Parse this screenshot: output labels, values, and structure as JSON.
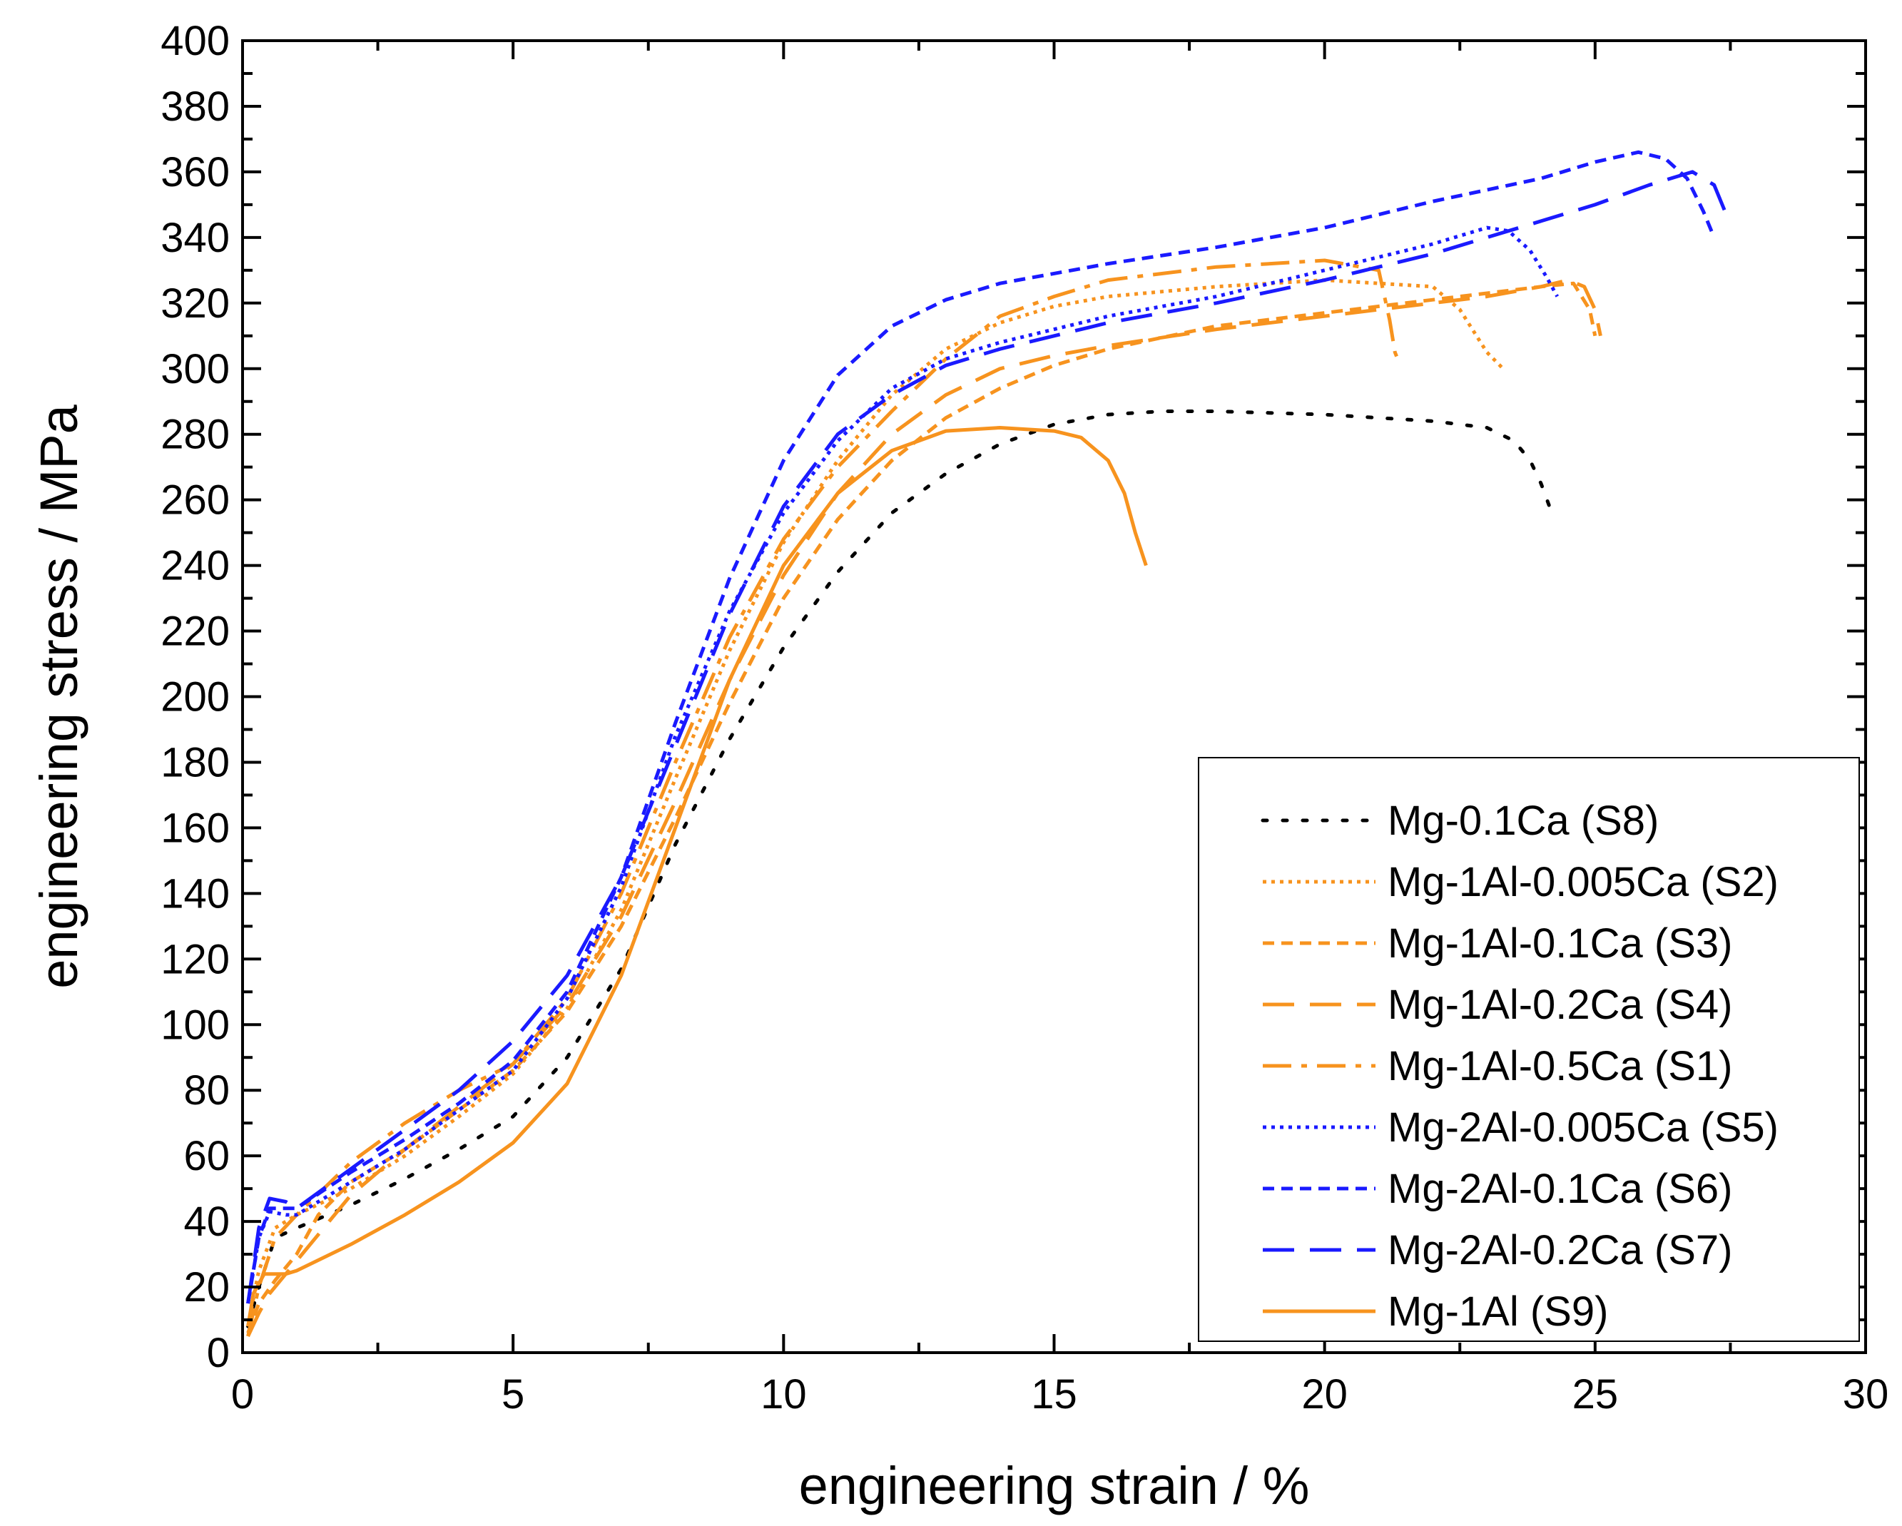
{
  "chart_data": {
    "type": "line",
    "title": "",
    "xlabel": "engineering strain / %",
    "ylabel": "engineering stress / MPa",
    "xlim": [
      0,
      30
    ],
    "ylim": [
      0,
      400
    ],
    "xticks": [
      0,
      5,
      10,
      15,
      20,
      25,
      30
    ],
    "yticks": [
      0,
      20,
      40,
      60,
      80,
      100,
      120,
      140,
      160,
      180,
      200,
      220,
      240,
      260,
      280,
      300,
      320,
      340,
      360,
      380,
      400
    ],
    "xtick_labels": [
      "0",
      "5",
      "10",
      "15",
      "20",
      "25",
      "30"
    ],
    "ytick_labels": [
      "0",
      "20",
      "40",
      "60",
      "80",
      "100",
      "120",
      "140",
      "160",
      "180",
      "200",
      "220",
      "240",
      "260",
      "280",
      "300",
      "320",
      "340",
      "360",
      "380",
      "400"
    ],
    "grid": false,
    "legend_position": "bottom-right",
    "series": [
      {
        "name": "Mg-0.1Ca (S8)",
        "color": "#000000",
        "dash": "dot-sparse",
        "x": [
          0.1,
          0.3,
          0.6,
          1.0,
          2.0,
          3.0,
          4.0,
          5.0,
          6.0,
          7.0,
          8.0,
          9.0,
          10.0,
          11.0,
          12.0,
          13.0,
          14.0,
          15.0,
          16.0,
          17.0,
          18.0,
          20.0,
          22.0,
          23.0,
          23.5,
          23.8,
          24.0,
          24.2
        ],
        "y": [
          8,
          20,
          35,
          38,
          45,
          53,
          62,
          72,
          90,
          117,
          155,
          187,
          215,
          238,
          256,
          268,
          277,
          283,
          286,
          287,
          287,
          286,
          284,
          282,
          278,
          272,
          265,
          256
        ]
      },
      {
        "name": "Mg-1Al-0.005Ca (S2)",
        "color": "#f7931e",
        "dash": "dot",
        "x": [
          0.1,
          0.3,
          0.6,
          1.0,
          2.0,
          3.0,
          4.0,
          5.0,
          6.0,
          7.0,
          8.0,
          9.0,
          10.0,
          11.0,
          12.0,
          13.0,
          14.0,
          15.0,
          16.0,
          18.0,
          20.0,
          22.0,
          22.5,
          23.0,
          23.3
        ],
        "y": [
          8,
          25,
          38,
          42,
          50,
          60,
          72,
          85,
          105,
          135,
          175,
          214,
          247,
          272,
          292,
          306,
          314,
          319,
          322,
          325,
          327,
          325,
          318,
          305,
          300
        ]
      },
      {
        "name": "Mg-1Al-0.1Ca (S3)",
        "color": "#f7931e",
        "dash": "short-dash",
        "x": [
          0.1,
          0.3,
          0.6,
          1.0,
          1.4,
          2.0,
          3.0,
          4.0,
          5.0,
          6.0,
          7.0,
          8.0,
          9.0,
          10.0,
          11.0,
          12.0,
          13.0,
          14.0,
          15.0,
          16.0,
          18.0,
          20.0,
          22.0,
          24.0,
          24.6,
          24.9,
          25.0
        ],
        "y": [
          6,
          15,
          22,
          30,
          42,
          52,
          62,
          74,
          86,
          104,
          130,
          163,
          198,
          230,
          254,
          272,
          285,
          294,
          301,
          306,
          313,
          317,
          321,
          325,
          326,
          318,
          310
        ]
      },
      {
        "name": "Mg-1Al-0.2Ca (S4)",
        "color": "#f7931e",
        "dash": "long-dash",
        "x": [
          0.1,
          0.3,
          0.5,
          1.0,
          2.0,
          3.0,
          4.0,
          5.0,
          6.0,
          7.0,
          8.0,
          9.0,
          10.0,
          11.0,
          12.0,
          13.0,
          14.0,
          15.0,
          16.0,
          18.0,
          20.0,
          22.0,
          23.0,
          24.0,
          24.5,
          24.8,
          25.0,
          25.1
        ],
        "y": [
          5,
          12,
          18,
          28,
          48,
          62,
          75,
          88,
          106,
          133,
          168,
          205,
          237,
          262,
          280,
          292,
          300,
          304,
          307,
          312,
          316,
          320,
          322,
          325,
          327,
          325,
          318,
          310
        ]
      },
      {
        "name": "Mg-1Al-0.5Ca (S1)",
        "color": "#f7931e",
        "dash": "dash-dot",
        "x": [
          0.1,
          0.3,
          0.6,
          1.0,
          2.0,
          3.0,
          4.0,
          5.0,
          6.0,
          7.0,
          8.0,
          9.0,
          10.0,
          11.0,
          12.0,
          13.0,
          14.0,
          15.0,
          16.0,
          18.0,
          20.0,
          21.0,
          21.2,
          21.3,
          21.35
        ],
        "y": [
          5,
          20,
          35,
          42,
          58,
          70,
          80,
          88,
          108,
          140,
          180,
          218,
          248,
          270,
          287,
          303,
          316,
          322,
          327,
          331,
          333,
          330,
          315,
          305,
          303
        ]
      },
      {
        "name": "Mg-2Al-0.005Ca (S5)",
        "color": "#1a1aff",
        "dash": "dot",
        "x": [
          0.1,
          0.3,
          0.5,
          0.8,
          1.0,
          2.0,
          3.0,
          4.0,
          5.0,
          6.0,
          7.0,
          8.0,
          9.0,
          10.0,
          11.0,
          12.0,
          13.0,
          14.0,
          15.0,
          16.0,
          18.0,
          20.0,
          22.0,
          23.0,
          23.4,
          23.8,
          24.1,
          24.3
        ],
        "y": [
          15,
          35,
          43,
          42,
          42,
          52,
          62,
          74,
          86,
          108,
          142,
          188,
          226,
          256,
          278,
          294,
          303,
          308,
          312,
          316,
          322,
          330,
          338,
          343,
          342,
          336,
          328,
          322
        ]
      },
      {
        "name": "Mg-2Al-0.1Ca (S6)",
        "color": "#1a1aff",
        "dash": "short-dash",
        "x": [
          0.1,
          0.3,
          0.5,
          0.8,
          1.0,
          2.0,
          3.0,
          4.0,
          5.0,
          6.0,
          7.0,
          8.0,
          9.0,
          10.0,
          11.0,
          12.0,
          13.0,
          14.0,
          15.0,
          16.0,
          18.0,
          20.0,
          22.0,
          24.0,
          25.0,
          25.8,
          26.3,
          26.7,
          27.0,
          27.2
        ],
        "y": [
          15,
          35,
          44,
          44,
          44,
          55,
          65,
          76,
          89,
          110,
          145,
          192,
          236,
          272,
          298,
          313,
          321,
          326,
          329,
          332,
          337,
          343,
          351,
          358,
          363,
          366,
          364,
          358,
          348,
          340
        ]
      },
      {
        "name": "Mg-2Al-0.2Ca (S7)",
        "color": "#1a1aff",
        "dash": "long-dash",
        "x": [
          0.1,
          0.3,
          0.5,
          0.8,
          1.0,
          2.0,
          3.0,
          4.0,
          5.0,
          6.0,
          7.0,
          8.0,
          9.0,
          10.0,
          11.0,
          12.0,
          13.0,
          14.0,
          15.0,
          16.0,
          18.0,
          20.0,
          22.0,
          24.0,
          25.0,
          26.0,
          26.8,
          27.2,
          27.4
        ],
        "y": [
          15,
          38,
          47,
          46,
          44,
          56,
          68,
          80,
          95,
          115,
          145,
          185,
          225,
          258,
          280,
          292,
          301,
          306,
          310,
          314,
          320,
          327,
          335,
          345,
          350,
          356,
          360,
          356,
          348
        ]
      },
      {
        "name": "Mg-1Al (S9)",
        "color": "#f7931e",
        "dash": "solid",
        "x": [
          0.1,
          0.2,
          0.4,
          0.8,
          1.0,
          2.0,
          3.0,
          4.0,
          5.0,
          6.0,
          7.0,
          8.0,
          9.0,
          10.0,
          11.0,
          12.0,
          13.0,
          14.0,
          15.0,
          15.5,
          16.0,
          16.3,
          16.5,
          16.7
        ],
        "y": [
          8,
          18,
          24,
          24,
          25,
          33,
          42,
          52,
          64,
          82,
          115,
          160,
          205,
          240,
          262,
          275,
          281,
          282,
          281,
          279,
          272,
          262,
          250,
          240
        ]
      }
    ]
  }
}
